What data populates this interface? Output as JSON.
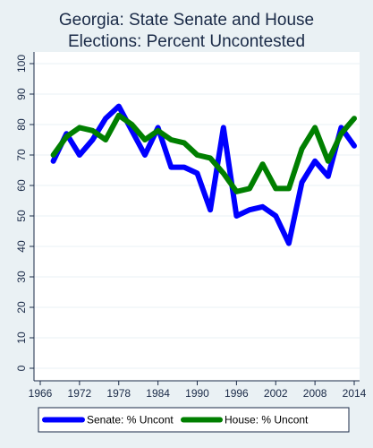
{
  "chart_data": {
    "type": "line",
    "title_lines": [
      "Georgia: State Senate and House",
      "Elections: Percent Uncontested"
    ],
    "xlabel": "",
    "ylabel": "",
    "xlim": [
      1966,
      2014
    ],
    "ylim": [
      0,
      100
    ],
    "x_ticks": [
      1966,
      1972,
      1978,
      1984,
      1990,
      1996,
      2002,
      2008,
      2014
    ],
    "y_ticks": [
      0,
      10,
      20,
      30,
      40,
      50,
      60,
      70,
      80,
      90,
      100
    ],
    "grid": true,
    "legend_position": "bottom",
    "series": [
      {
        "name": "Senate: % Uncont",
        "color": "#0000ff",
        "x": [
          1968,
          1970,
          1972,
          1974,
          1976,
          1978,
          1980,
          1982,
          1984,
          1986,
          1988,
          1990,
          1992,
          1994,
          1996,
          1998,
          2000,
          2002,
          2004,
          2006,
          2008,
          2010,
          2012,
          2014
        ],
        "y": [
          68,
          77,
          70,
          75,
          82,
          86,
          78,
          70,
          79,
          66,
          66,
          64,
          52,
          79,
          50,
          52,
          53,
          50,
          41,
          61,
          68,
          63,
          79,
          73
        ]
      },
      {
        "name": "House: % Uncont",
        "color": "#007f00",
        "x": [
          1968,
          1970,
          1972,
          1974,
          1976,
          1978,
          1980,
          1982,
          1984,
          1986,
          1988,
          1990,
          1992,
          1994,
          1996,
          1998,
          2000,
          2002,
          2004,
          2006,
          2008,
          2010,
          2012,
          2014
        ],
        "y": [
          70,
          76,
          79,
          78,
          75,
          83,
          80,
          75,
          78,
          75,
          74,
          70,
          69,
          64,
          58,
          59,
          67,
          59,
          59,
          72,
          79,
          68,
          77,
          82
        ]
      }
    ]
  }
}
